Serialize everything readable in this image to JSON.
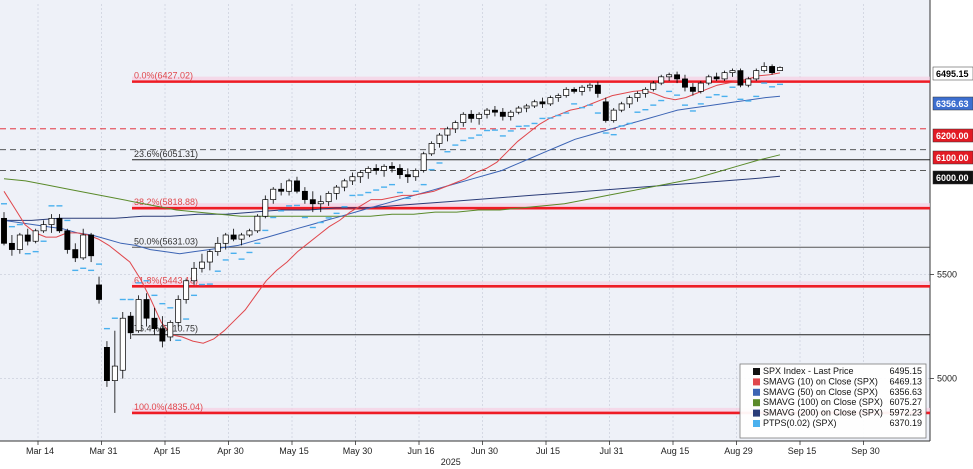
{
  "chart_data": {
    "type": "candlestick",
    "title": "",
    "xlabel": "",
    "ylabel": "",
    "year_label": "2025",
    "ylim": [
      4700,
      6800
    ],
    "y_ticks": [
      5000,
      5500
    ],
    "x_ticks": [
      "Mar 14",
      "Mar 31",
      "Apr 15",
      "Apr 30",
      "May 15",
      "May 30",
      "Jun 16",
      "Jun 30",
      "Jul 15",
      "Jul 31",
      "Aug 15",
      "Aug 29",
      "Sep 15",
      "Sep 30"
    ],
    "grid": true,
    "fib_levels": [
      {
        "label": "0.0%(6427.02)",
        "value": 6427.02,
        "color": "#ee1c25"
      },
      {
        "label": "23.6%(6051.31)",
        "value": 6051.31,
        "color": "#222222"
      },
      {
        "label": "38.2%(5818.88)",
        "value": 5818.88,
        "color": "#ee1c25"
      },
      {
        "label": "50.0%(5631.03)",
        "value": 5631.03,
        "color": "#555555"
      },
      {
        "label": "61.8%(5443.18)",
        "value": 5443.18,
        "color": "#ee1c25"
      },
      {
        "label": "76.4%(5210.75)",
        "value": 5210.75,
        "color": "#222222"
      },
      {
        "label": "100.0%(4835.04)",
        "value": 4835.04,
        "color": "#ee1c25"
      }
    ],
    "reference_lines": [
      {
        "value": 6200,
        "style": "dashed",
        "color": "#e21b24"
      },
      {
        "value": 6100,
        "style": "dashed",
        "color": "#444444"
      },
      {
        "value": 6000,
        "style": "dashed",
        "color": "#444444"
      }
    ],
    "price_tags": [
      {
        "text": "6495.15",
        "bg": "#ffffff",
        "fg": "#000000"
      },
      {
        "text": "6356.63",
        "bg": "#3d6fd0",
        "fg": "#ffffff"
      },
      {
        "text": "6200.00",
        "bg": "#e21b24",
        "fg": "#ffffff"
      },
      {
        "text": "6100.00",
        "bg": "#e21b24",
        "fg": "#ffffff"
      },
      {
        "text": "6000.00",
        "bg": "#111111",
        "fg": "#ffffff"
      }
    ],
    "candles": [
      [
        5770,
        5800,
        5640,
        5650
      ],
      [
        5650,
        5690,
        5590,
        5620
      ],
      [
        5620,
        5700,
        5600,
        5690
      ],
      [
        5690,
        5720,
        5640,
        5660
      ],
      [
        5660,
        5720,
        5650,
        5710
      ],
      [
        5710,
        5760,
        5700,
        5740
      ],
      [
        5740,
        5790,
        5700,
        5770
      ],
      [
        5770,
        5790,
        5700,
        5710
      ],
      [
        5710,
        5720,
        5600,
        5620
      ],
      [
        5620,
        5650,
        5560,
        5580
      ],
      [
        5580,
        5720,
        5570,
        5690
      ],
      [
        5690,
        5700,
        5560,
        5590
      ],
      [
        5450,
        5490,
        5360,
        5380
      ],
      [
        5150,
        5180,
        4960,
        4990
      ],
      [
        4990,
        5230,
        4835,
        5060
      ],
      [
        5040,
        5320,
        5000,
        5290
      ],
      [
        5300,
        5320,
        5190,
        5220
      ],
      [
        5230,
        5400,
        5220,
        5380
      ],
      [
        5380,
        5410,
        5250,
        5290
      ],
      [
        5290,
        5340,
        5210,
        5240
      ],
      [
        5240,
        5300,
        5150,
        5180
      ],
      [
        5200,
        5280,
        5180,
        5270
      ],
      [
        5270,
        5400,
        5250,
        5380
      ],
      [
        5380,
        5480,
        5360,
        5470
      ],
      [
        5470,
        5560,
        5450,
        5530
      ],
      [
        5530,
        5600,
        5510,
        5560
      ],
      [
        5560,
        5620,
        5520,
        5610
      ],
      [
        5610,
        5680,
        5590,
        5650
      ],
      [
        5650,
        5700,
        5620,
        5690
      ],
      [
        5690,
        5720,
        5660,
        5670
      ],
      [
        5670,
        5700,
        5640,
        5690
      ],
      [
        5690,
        5720,
        5680,
        5710
      ],
      [
        5710,
        5790,
        5700,
        5780
      ],
      [
        5780,
        5880,
        5770,
        5860
      ],
      [
        5860,
        5920,
        5840,
        5910
      ],
      [
        5910,
        5940,
        5880,
        5900
      ],
      [
        5900,
        5960,
        5880,
        5950
      ],
      [
        5950,
        5970,
        5890,
        5900
      ],
      [
        5900,
        5920,
        5840,
        5860
      ],
      [
        5860,
        5900,
        5800,
        5840
      ],
      [
        5840,
        5880,
        5800,
        5850
      ],
      [
        5850,
        5900,
        5830,
        5890
      ],
      [
        5890,
        5930,
        5860,
        5920
      ],
      [
        5920,
        5960,
        5900,
        5950
      ],
      [
        5950,
        5990,
        5930,
        5970
      ],
      [
        5970,
        6000,
        5940,
        5990
      ],
      [
        5990,
        6020,
        5960,
        6010
      ],
      [
        6010,
        6030,
        5980,
        6000
      ],
      [
        6000,
        6030,
        5970,
        6020
      ],
      [
        6020,
        6040,
        5990,
        6010
      ],
      [
        6010,
        6030,
        5960,
        5980
      ],
      [
        5980,
        6010,
        5940,
        5970
      ],
      [
        5970,
        6010,
        5950,
        6000
      ],
      [
        6000,
        6090,
        5990,
        6080
      ],
      [
        6080,
        6140,
        6070,
        6130
      ],
      [
        6130,
        6180,
        6110,
        6170
      ],
      [
        6170,
        6210,
        6140,
        6200
      ],
      [
        6200,
        6240,
        6180,
        6230
      ],
      [
        6230,
        6280,
        6210,
        6270
      ],
      [
        6270,
        6290,
        6230,
        6250
      ],
      [
        6250,
        6280,
        6220,
        6270
      ],
      [
        6270,
        6300,
        6250,
        6290
      ],
      [
        6290,
        6310,
        6260,
        6280
      ],
      [
        6280,
        6300,
        6240,
        6260
      ],
      [
        6260,
        6290,
        6240,
        6280
      ],
      [
        6280,
        6310,
        6270,
        6300
      ],
      [
        6300,
        6320,
        6280,
        6310
      ],
      [
        6310,
        6340,
        6300,
        6330
      ],
      [
        6330,
        6350,
        6300,
        6320
      ],
      [
        6320,
        6360,
        6310,
        6350
      ],
      [
        6350,
        6370,
        6330,
        6360
      ],
      [
        6360,
        6400,
        6350,
        6390
      ],
      [
        6390,
        6400,
        6370,
        6380
      ],
      [
        6380,
        6410,
        6360,
        6400
      ],
      [
        6400,
        6420,
        6380,
        6410
      ],
      [
        6410,
        6427,
        6350,
        6370
      ],
      [
        6330,
        6350,
        6230,
        6240
      ],
      [
        6240,
        6300,
        6230,
        6290
      ],
      [
        6290,
        6330,
        6280,
        6320
      ],
      [
        6320,
        6360,
        6300,
        6350
      ],
      [
        6350,
        6380,
        6330,
        6370
      ],
      [
        6370,
        6400,
        6350,
        6390
      ],
      [
        6390,
        6430,
        6380,
        6420
      ],
      [
        6420,
        6460,
        6410,
        6450
      ],
      [
        6450,
        6470,
        6430,
        6460
      ],
      [
        6460,
        6475,
        6420,
        6440
      ],
      [
        6440,
        6460,
        6380,
        6400
      ],
      [
        6400,
        6420,
        6360,
        6380
      ],
      [
        6380,
        6430,
        6370,
        6420
      ],
      [
        6420,
        6460,
        6410,
        6450
      ],
      [
        6450,
        6470,
        6430,
        6440
      ],
      [
        6440,
        6480,
        6430,
        6470
      ],
      [
        6470,
        6490,
        6450,
        6480
      ],
      [
        6480,
        6490,
        6400,
        6410
      ],
      [
        6410,
        6450,
        6400,
        6440
      ],
      [
        6440,
        6490,
        6430,
        6480
      ],
      [
        6480,
        6520,
        6470,
        6500
      ],
      [
        6500,
        6510,
        6460,
        6470
      ],
      [
        6480,
        6500,
        6480,
        6495
      ]
    ],
    "series": [
      {
        "name": "SMAVG (10)  on Close (SPX)",
        "last": "6469.13",
        "color": "#e0474c",
        "values": [
          5900,
          5820,
          5740,
          5700,
          5680,
          5680,
          5700,
          5700,
          5690,
          5670,
          5640,
          5600,
          5560,
          5480,
          5380,
          5270,
          5210,
          5200,
          5180,
          5170,
          5190,
          5230,
          5280,
          5330,
          5400,
          5470,
          5520,
          5560,
          5610,
          5650,
          5690,
          5730,
          5760,
          5800,
          5830,
          5860,
          5860,
          5870,
          5880,
          5880,
          5890,
          5900,
          5920,
          5940,
          5960,
          5990,
          6010,
          6040,
          6090,
          6140,
          6180,
          6220,
          6250,
          6270,
          6290,
          6300,
          6320,
          6340,
          6360,
          6370,
          6380,
          6385,
          6370,
          6350,
          6340,
          6350,
          6370,
          6390,
          6410,
          6420,
          6430,
          6440,
          6455,
          6460,
          6469
        ]
      },
      {
        "name": "SMAVG (50)  on Close (SPX)",
        "last": "6356.63",
        "color": "#3c64b4",
        "values": [
          5760,
          5750,
          5740,
          5730,
          5720,
          5700,
          5690,
          5670,
          5650,
          5640,
          5620,
          5610,
          5600,
          5610,
          5620,
          5630,
          5640,
          5660,
          5680,
          5700,
          5720,
          5740,
          5760,
          5780,
          5800,
          5820,
          5840,
          5860,
          5880,
          5900,
          5920,
          5940,
          5960,
          5980,
          6000,
          6030,
          6060,
          6090,
          6120,
          6150,
          6170,
          6190,
          6210,
          6230,
          6250,
          6270,
          6290,
          6300,
          6310,
          6320,
          6330,
          6340,
          6350,
          6356.63
        ]
      },
      {
        "name": "SMAVG (100)  on Close (SPX)",
        "last": "6075.27",
        "color": "#5a8a2a",
        "values": [
          5960,
          5950,
          5930,
          5910,
          5890,
          5870,
          5850,
          5830,
          5810,
          5800,
          5790,
          5780,
          5780,
          5780,
          5780,
          5780,
          5780,
          5780,
          5790,
          5790,
          5800,
          5800,
          5810,
          5810,
          5820,
          5830,
          5840,
          5860,
          5880,
          5900,
          5920,
          5940,
          5960,
          5990,
          6020,
          6050,
          6075.27
        ]
      },
      {
        "name": "SMAVG (200)  on Close (SPX)",
        "last": "5972.23",
        "color": "#2a3c78",
        "values": [
          5760,
          5760,
          5770,
          5770,
          5770,
          5780,
          5780,
          5790,
          5790,
          5800,
          5810,
          5810,
          5820,
          5820,
          5830,
          5840,
          5850,
          5860,
          5870,
          5880,
          5890,
          5900,
          5910,
          5920,
          5930,
          5940,
          5950,
          5960,
          5972.23
        ]
      },
      {
        "name": "PTPS(0.02)  (SPX)",
        "last": "6370.19",
        "color": "#4ab0ee"
      }
    ],
    "legend": {
      "placement": "bottom-right",
      "header": "SPX Index - Last Price",
      "header_value": "6495.15"
    }
  }
}
